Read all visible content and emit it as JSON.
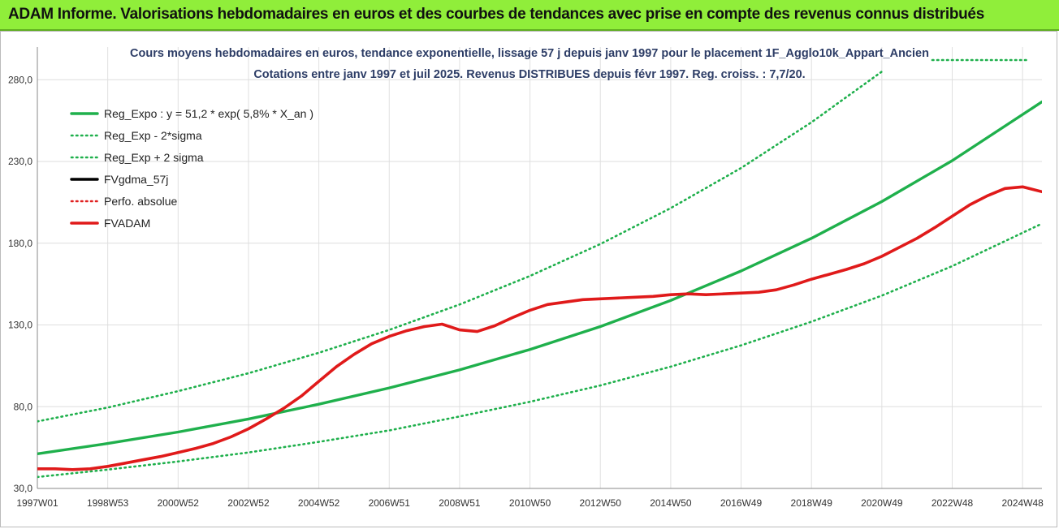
{
  "banner": {
    "title": "ADAM Informe. Valorisations hebdomadaires en euros et des courbes de tendances avec prise en compte des revenus connus distribués"
  },
  "chart_data": {
    "type": "line",
    "title": "Cours moyens hebdomadaires en euros, tendance exponentielle, lissage 57 j depuis janv 1997 pour le placement 1F_Agglo10k_Appart_Ancien",
    "subtitle": "Cotations entre janv 1997 et juil 2025. Revenus DISTRIBUES depuis févr 1997. Reg. croiss. : 7,7/20.",
    "xlabel": "",
    "ylabel": "",
    "x_unit": "year",
    "xlim": [
      1997.0,
      2025.55
    ],
    "ylim": [
      30,
      300
    ],
    "y_ticks": [
      30,
      80,
      130,
      180,
      230,
      280
    ],
    "y_tick_labels": [
      "30,0",
      "80,0",
      "130,0",
      "180,0",
      "230,0",
      "280,0"
    ],
    "x_tick_labels": [
      "1997W01",
      "1998W53",
      "2000W52",
      "2002W52",
      "2004W52",
      "2006W51",
      "2008W51",
      "2010W50",
      "2012W50",
      "2014W50",
      "2016W49",
      "2018W49",
      "2020W49",
      "2022W48",
      "2024W48"
    ],
    "x_tick_positions": [
      1997.0,
      1999.0,
      2001.0,
      2003.0,
      2005.0,
      2007.0,
      2009.0,
      2011.0,
      2013.0,
      2015.0,
      2017.0,
      2019.0,
      2021.0,
      2023.0,
      2025.0
    ],
    "grid": {
      "x": true,
      "y": true
    },
    "legend_position": "top-left",
    "series": [
      {
        "name": "Reg_Expo : y = 51,2 * exp( 5,8% *  X_an )",
        "color": "#1fb04c",
        "style": "solid",
        "x": [
          1997.0,
          1999.0,
          2001.0,
          2003.0,
          2005.0,
          2007.0,
          2009.0,
          2011.0,
          2013.0,
          2015.0,
          2017.0,
          2019.0,
          2021.0,
          2023.0,
          2025.55
        ],
        "values": [
          51.2,
          57.5,
          64.5,
          72.5,
          81.5,
          91.5,
          102.5,
          115.0,
          129.0,
          145.0,
          163.0,
          183.0,
          205.5,
          230.5,
          266.5
        ]
      },
      {
        "name": "Reg_Exp - 2*sigma",
        "color": "#1fb04c",
        "style": "dotted",
        "x": [
          1997.0,
          1999.0,
          2001.0,
          2003.0,
          2005.0,
          2007.0,
          2009.0,
          2011.0,
          2013.0,
          2015.0,
          2017.0,
          2019.0,
          2021.0,
          2023.0,
          2025.55
        ],
        "values": [
          37.0,
          41.5,
          46.5,
          52.0,
          58.5,
          65.5,
          74.0,
          83.0,
          93.0,
          104.5,
          117.5,
          132.0,
          148.0,
          166.0,
          192.0
        ]
      },
      {
        "name": "Reg_Exp + 2 sigma",
        "color": "#1fb04c",
        "style": "dotted",
        "x": [
          1997.0,
          1999.0,
          2001.0,
          2003.0,
          2005.0,
          2007.0,
          2009.0,
          2011.0,
          2013.0,
          2015.0,
          2017.0,
          2019.0,
          2021.0
        ],
        "values": [
          71.0,
          79.5,
          89.5,
          100.5,
          113.0,
          127.0,
          142.5,
          160.0,
          179.5,
          201.5,
          226.0,
          254.0,
          285.0
        ]
      },
      {
        "name": "FVgdma_57j",
        "color": "#000000",
        "style": "solid",
        "x": [],
        "values": []
      },
      {
        "name": "Perfo. absolue",
        "color": "#e02020",
        "style": "dotted",
        "x": [],
        "values": []
      },
      {
        "name": "FVADAM",
        "color": "#e01a1a",
        "style": "solid",
        "x": [
          1997.0,
          1997.5,
          1998.0,
          1998.5,
          1999.0,
          1999.5,
          2000.0,
          2000.5,
          2001.0,
          2001.5,
          2002.0,
          2002.5,
          2003.0,
          2003.5,
          2004.0,
          2004.5,
          2005.0,
          2005.5,
          2006.0,
          2006.5,
          2007.0,
          2007.5,
          2008.0,
          2008.5,
          2009.0,
          2009.5,
          2010.0,
          2010.5,
          2011.0,
          2011.5,
          2012.0,
          2012.5,
          2013.0,
          2013.5,
          2014.0,
          2014.5,
          2015.0,
          2015.5,
          2016.0,
          2016.5,
          2017.0,
          2017.5,
          2018.0,
          2018.5,
          2019.0,
          2019.5,
          2020.0,
          2020.5,
          2021.0,
          2021.5,
          2022.0,
          2022.5,
          2023.0,
          2023.5,
          2024.0,
          2024.5,
          2025.0,
          2025.55
        ],
        "values": [
          42.0,
          42.0,
          41.5,
          42.0,
          43.5,
          45.5,
          47.5,
          49.5,
          52.0,
          54.5,
          57.5,
          61.5,
          66.5,
          72.5,
          79.0,
          86.5,
          95.5,
          104.5,
          112.0,
          118.5,
          123.0,
          126.5,
          129.0,
          130.5,
          127.0,
          126.0,
          129.5,
          134.5,
          139.0,
          142.5,
          144.0,
          145.5,
          146.0,
          146.5,
          147.0,
          147.5,
          148.5,
          149.0,
          148.5,
          149.0,
          149.5,
          150.0,
          151.5,
          154.5,
          158.0,
          161.0,
          164.0,
          167.5,
          172.0,
          177.5,
          183.0,
          189.5,
          196.5,
          203.5,
          209.0,
          213.5,
          214.5,
          211.5
        ]
      }
    ]
  }
}
